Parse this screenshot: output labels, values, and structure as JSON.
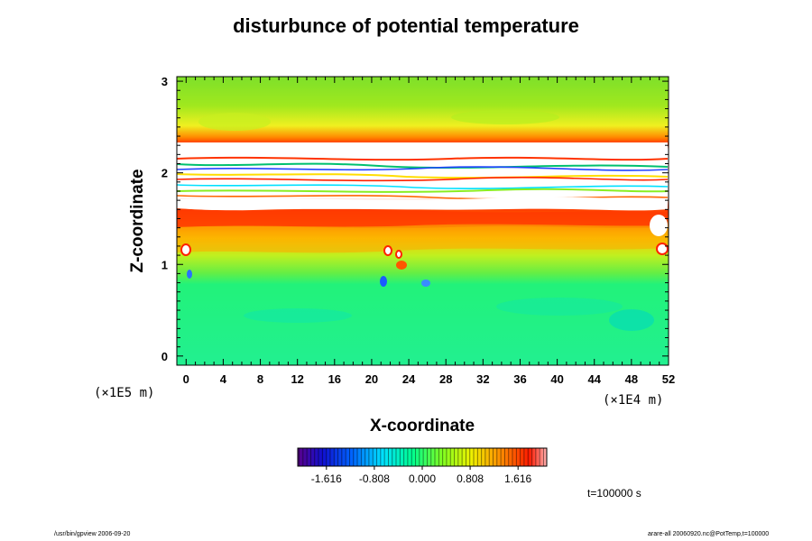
{
  "chart_data": {
    "type": "heatmap",
    "title": "disturbunce of potential temperature",
    "xlabel": "X-coordinate",
    "ylabel": "Z-coordinate",
    "x_unit": "(×1E4 m)",
    "y_unit": "(×1E5 m)",
    "xlim": [
      -1,
      52
    ],
    "ylim": [
      -0.1,
      3.05
    ],
    "x_ticks": [
      "0",
      "4",
      "8",
      "12",
      "16",
      "20",
      "24",
      "28",
      "32",
      "36",
      "40",
      "44",
      "48",
      "52"
    ],
    "y_ticks": [
      "0",
      "1",
      "2",
      "3"
    ],
    "colorbar": {
      "range": [
        -2.1,
        2.1
      ],
      "tick_labels": [
        "-1.616",
        "-0.808",
        "0.000",
        "0.808",
        "1.616"
      ]
    },
    "time_label": "t=100000 s"
  },
  "footer": {
    "left": "/usr/bin/gpview 2006-09-20",
    "right": "arare-all 20060920.nc@PotTemp,t=100000"
  },
  "colors": {
    "background_field": "#00ff88",
    "upper_layer": "#88ee22",
    "inversion": "#ff2200",
    "saturated": "#ffffff"
  }
}
